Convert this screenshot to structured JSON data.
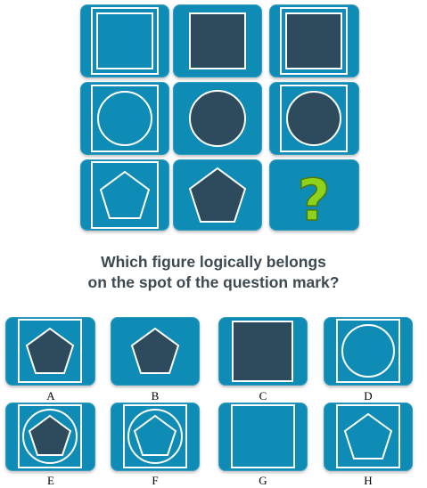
{
  "puzzle": {
    "question_line1": "Which figure logically belongs",
    "question_line2": "on the spot of the question mark?",
    "missing_symbol": "?",
    "grid": [
      [
        "frame-empty",
        "filled-square",
        "frame-filled-square"
      ],
      [
        "frame-outline-circle",
        "filled-circle",
        "frame-filled-circle"
      ],
      [
        "frame-outline-pentagon",
        "filled-pentagon",
        "question-mark"
      ]
    ]
  },
  "options": [
    {
      "label": "A",
      "figure": "frame-filled-pentagon"
    },
    {
      "label": "B",
      "figure": "filled-pentagon"
    },
    {
      "label": "C",
      "figure": "filled-square"
    },
    {
      "label": "D",
      "figure": "frame-outline-circle"
    },
    {
      "label": "E",
      "figure": "frame-circle-filled-pentagon"
    },
    {
      "label": "F",
      "figure": "frame-circle-outline-pentagon"
    },
    {
      "label": "G",
      "figure": "frame-empty"
    },
    {
      "label": "H",
      "figure": "frame-outline-pentagon"
    }
  ],
  "colors": {
    "tile": "#0f8cb5",
    "shape_fill": "#2d4b5c",
    "line": "#ffffff",
    "question_mark": "#8ed21d",
    "question_text": "#3d4a52"
  }
}
